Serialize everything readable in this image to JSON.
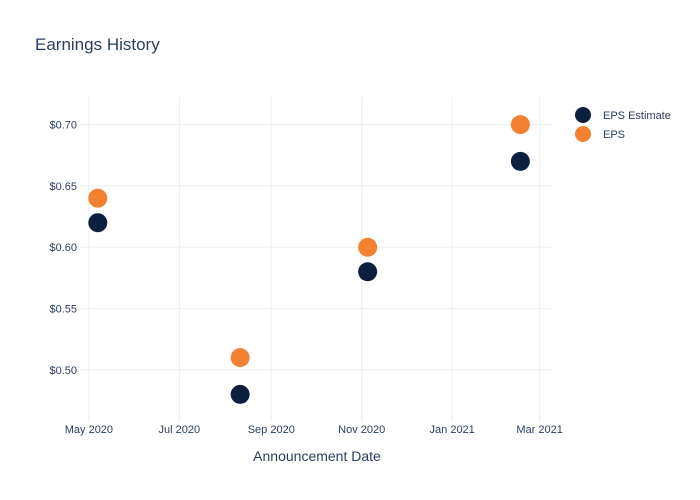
{
  "chart_data": {
    "type": "scatter",
    "title": "Earnings History",
    "xlabel": "Announcement Date",
    "ylabel": "",
    "x_ticks": [
      {
        "label": "May 2020",
        "date": "2020-05-01"
      },
      {
        "label": "Jul 2020",
        "date": "2020-07-01"
      },
      {
        "label": "Sep 2020",
        "date": "2020-09-01"
      },
      {
        "label": "Nov 2020",
        "date": "2020-11-01"
      },
      {
        "label": "Jan 2021",
        "date": "2021-01-01"
      },
      {
        "label": "Mar 2021",
        "date": "2021-03-01"
      }
    ],
    "y_ticks": [
      {
        "label": "$0.50",
        "value": 0.5
      },
      {
        "label": "$0.55",
        "value": 0.55
      },
      {
        "label": "$0.60",
        "value": 0.6
      },
      {
        "label": "$0.65",
        "value": 0.65
      },
      {
        "label": "$0.70",
        "value": 0.7
      }
    ],
    "xlim": [
      "2020-04-25",
      "2021-03-10"
    ],
    "ylim": [
      0.4575,
      0.7225
    ],
    "grid": true,
    "legend_position": "top-right",
    "series": [
      {
        "name": "EPS Estimate",
        "color": "#0b1f3f",
        "points": [
          {
            "date": "2020-05-07",
            "value": 0.62
          },
          {
            "date": "2020-08-11",
            "value": 0.48
          },
          {
            "date": "2020-11-05",
            "value": 0.58
          },
          {
            "date": "2021-02-16",
            "value": 0.67
          }
        ]
      },
      {
        "name": "EPS",
        "color": "#f48132",
        "points": [
          {
            "date": "2020-05-07",
            "value": 0.64
          },
          {
            "date": "2020-08-11",
            "value": 0.51
          },
          {
            "date": "2020-11-05",
            "value": 0.6
          },
          {
            "date": "2021-02-16",
            "value": 0.7
          }
        ]
      }
    ]
  }
}
